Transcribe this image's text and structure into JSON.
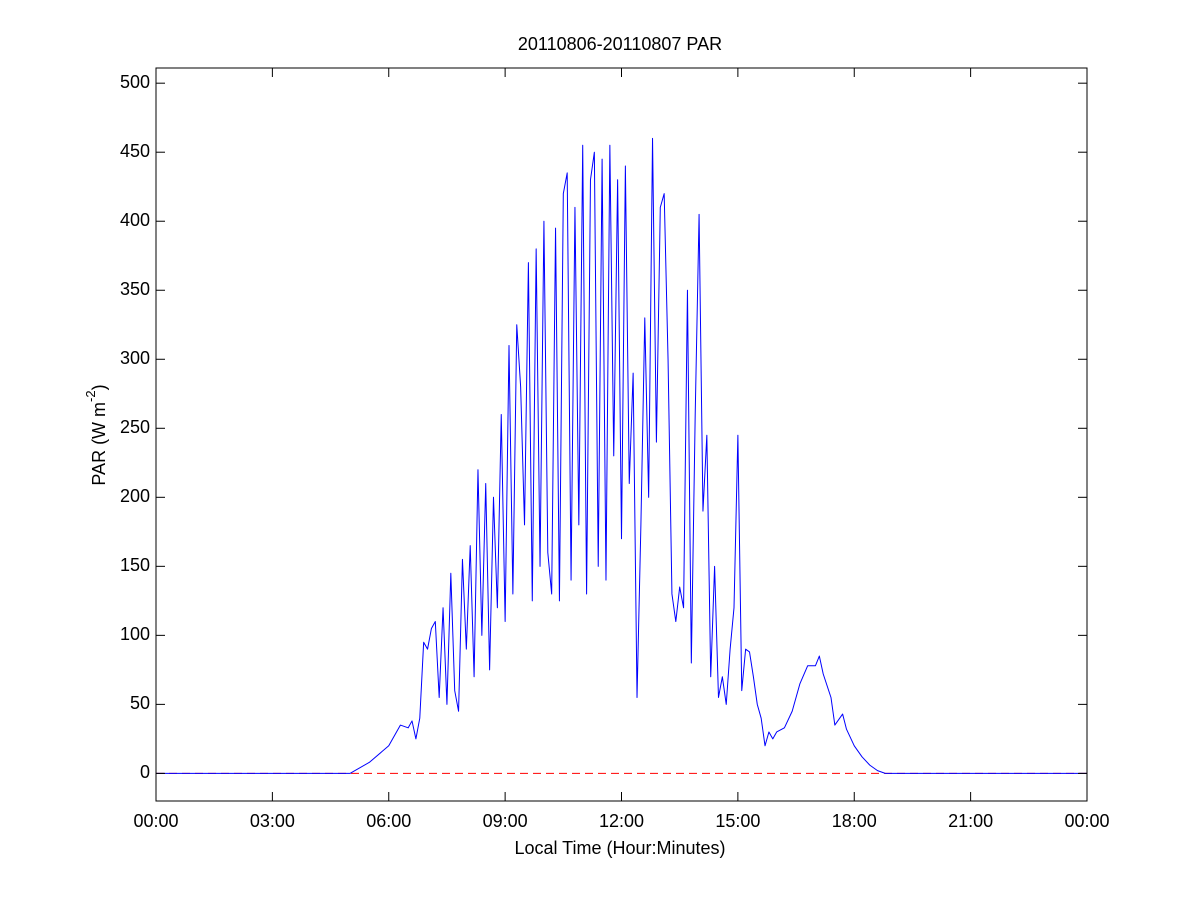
{
  "chart_data": {
    "type": "line",
    "title": "20110806-20110807 PAR",
    "xlabel": "Local Time (Hour:Minutes)",
    "ylabel": "PAR (W m",
    "ylabel_superscript": "-2",
    "ylabel_close": ")",
    "x": [
      0,
      5.0,
      5.5,
      6.0,
      6.3,
      6.5,
      6.6,
      6.7,
      6.8,
      6.9,
      7.0,
      7.1,
      7.2,
      7.3,
      7.4,
      7.5,
      7.6,
      7.7,
      7.8,
      7.9,
      8.0,
      8.1,
      8.2,
      8.3,
      8.4,
      8.5,
      8.6,
      8.7,
      8.8,
      8.9,
      9.0,
      9.1,
      9.2,
      9.3,
      9.4,
      9.5,
      9.6,
      9.7,
      9.8,
      9.9,
      10.0,
      10.1,
      10.2,
      10.3,
      10.4,
      10.5,
      10.6,
      10.7,
      10.8,
      10.9,
      11.0,
      11.1,
      11.2,
      11.3,
      11.4,
      11.5,
      11.6,
      11.7,
      11.8,
      11.9,
      12.0,
      12.1,
      12.2,
      12.3,
      12.4,
      12.5,
      12.6,
      12.7,
      12.8,
      12.9,
      13.0,
      13.1,
      13.2,
      13.3,
      13.4,
      13.5,
      13.6,
      13.7,
      13.8,
      13.9,
      14.0,
      14.1,
      14.2,
      14.3,
      14.4,
      14.5,
      14.6,
      14.7,
      14.8,
      14.9,
      15.0,
      15.1,
      15.2,
      15.3,
      15.4,
      15.5,
      15.6,
      15.7,
      15.8,
      15.9,
      16.0,
      16.2,
      16.4,
      16.6,
      16.8,
      17.0,
      17.1,
      17.2,
      17.4,
      17.5,
      17.7,
      17.8,
      18.0,
      18.2,
      18.4,
      18.6,
      18.8,
      19.0,
      24
    ],
    "series": [
      {
        "name": "PAR",
        "color": "#0000ff",
        "values": [
          0,
          0,
          8,
          20,
          35,
          33,
          38,
          25,
          40,
          95,
          90,
          105,
          110,
          55,
          120,
          50,
          145,
          60,
          45,
          155,
          90,
          165,
          70,
          220,
          100,
          210,
          75,
          200,
          120,
          260,
          110,
          310,
          130,
          325,
          280,
          180,
          370,
          125,
          380,
          150,
          400,
          160,
          130,
          395,
          125,
          420,
          435,
          140,
          410,
          180,
          455,
          130,
          430,
          450,
          150,
          445,
          140,
          455,
          230,
          430,
          170,
          440,
          210,
          290,
          55,
          180,
          330,
          200,
          460,
          240,
          410,
          420,
          300,
          130,
          110,
          135,
          120,
          350,
          80,
          260,
          405,
          190,
          245,
          70,
          150,
          55,
          70,
          50,
          90,
          120,
          245,
          60,
          90,
          88,
          70,
          50,
          40,
          20,
          30,
          25,
          30,
          33,
          45,
          65,
          78,
          78,
          85,
          72,
          55,
          35,
          43,
          32,
          20,
          12,
          6,
          2,
          0,
          0,
          0
        ]
      }
    ],
    "reference_line": {
      "value": 0,
      "color": "#ff0000",
      "style": "dashed"
    },
    "xlim": [
      0,
      24
    ],
    "xticks": [
      {
        "value": 0,
        "label": "00:00"
      },
      {
        "value": 3,
        "label": "03:00"
      },
      {
        "value": 6,
        "label": "06:00"
      },
      {
        "value": 9,
        "label": "09:00"
      },
      {
        "value": 12,
        "label": "12:00"
      },
      {
        "value": 15,
        "label": "15:00"
      },
      {
        "value": 18,
        "label": "18:00"
      },
      {
        "value": 21,
        "label": "21:00"
      },
      {
        "value": 24,
        "label": "00:00"
      }
    ],
    "ylim": [
      -20,
      511
    ],
    "yticks": [
      0,
      50,
      100,
      150,
      200,
      250,
      300,
      350,
      400,
      450,
      500
    ],
    "grid": false
  }
}
